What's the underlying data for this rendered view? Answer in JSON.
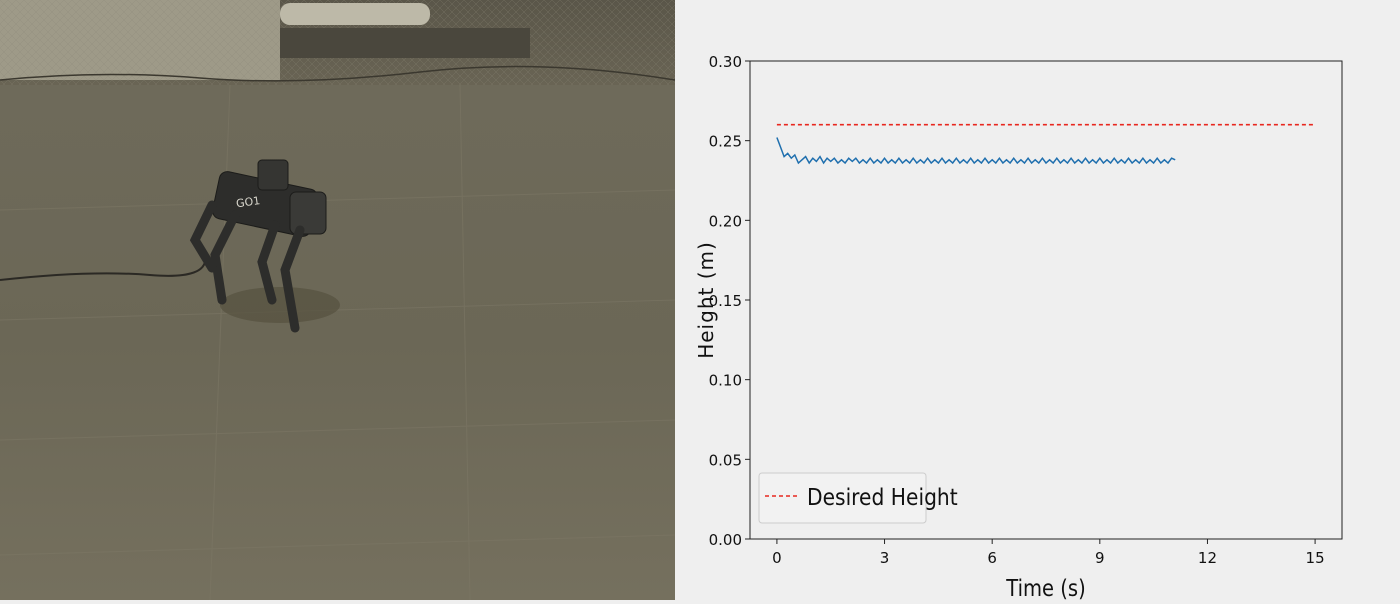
{
  "chart_data": {
    "type": "line",
    "xlabel": "Time (s)",
    "ylabel": "Height (m)",
    "xlim": [
      -0.75,
      15.75
    ],
    "ylim": [
      0.0,
      0.3
    ],
    "xticks": [
      0,
      3,
      6,
      9,
      12,
      15
    ],
    "yticks": [
      0.0,
      0.05,
      0.1,
      0.15,
      0.2,
      0.25,
      0.3
    ],
    "xtick_labels": [
      "0",
      "3",
      "6",
      "9",
      "12",
      "15"
    ],
    "ytick_labels": [
      "0.00",
      "0.05",
      "0.10",
      "0.15",
      "0.20",
      "0.25",
      "0.30"
    ],
    "grid": false,
    "legend_position": "lower-left",
    "legend": [
      "Desired Height"
    ],
    "series": [
      {
        "name": "Desired Height",
        "style": "dashed",
        "color": "#e8271f",
        "x": [
          0,
          15
        ],
        "y": [
          0.26,
          0.26
        ]
      },
      {
        "style": "solid",
        "color": "#1f6fae",
        "x": [
          0.0,
          0.1,
          0.2,
          0.3,
          0.4,
          0.5,
          0.6,
          0.7,
          0.8,
          0.9,
          1.0,
          1.1,
          1.2,
          1.3,
          1.4,
          1.5,
          1.6,
          1.7,
          1.8,
          1.9,
          2.0,
          2.1,
          2.2,
          2.3,
          2.4,
          2.5,
          2.6,
          2.7,
          2.8,
          2.9,
          3.0,
          3.1,
          3.2,
          3.3,
          3.4,
          3.5,
          3.6,
          3.7,
          3.8,
          3.9,
          4.0,
          4.1,
          4.2,
          4.3,
          4.4,
          4.5,
          4.6,
          4.7,
          4.8,
          4.9,
          5.0,
          5.1,
          5.2,
          5.3,
          5.4,
          5.5,
          5.6,
          5.7,
          5.8,
          5.9,
          6.0,
          6.1,
          6.2,
          6.3,
          6.4,
          6.5,
          6.6,
          6.7,
          6.8,
          6.9,
          7.0,
          7.1,
          7.2,
          7.3,
          7.4,
          7.5,
          7.6,
          7.7,
          7.8,
          7.9,
          8.0,
          8.1,
          8.2,
          8.3,
          8.4,
          8.5,
          8.6,
          8.7,
          8.8,
          8.9,
          9.0,
          9.1,
          9.2,
          9.3,
          9.4,
          9.5,
          9.6,
          9.7,
          9.8,
          9.9,
          10.0,
          10.1,
          10.2,
          10.3,
          10.4,
          10.5,
          10.6,
          10.7,
          10.8,
          10.9,
          11.0,
          11.1
        ],
        "y": [
          0.252,
          0.246,
          0.24,
          0.242,
          0.239,
          0.241,
          0.236,
          0.238,
          0.24,
          0.236,
          0.239,
          0.237,
          0.24,
          0.236,
          0.239,
          0.237,
          0.239,
          0.236,
          0.238,
          0.236,
          0.239,
          0.237,
          0.239,
          0.236,
          0.238,
          0.236,
          0.239,
          0.236,
          0.238,
          0.236,
          0.239,
          0.236,
          0.238,
          0.236,
          0.239,
          0.236,
          0.238,
          0.236,
          0.239,
          0.236,
          0.238,
          0.236,
          0.239,
          0.236,
          0.238,
          0.236,
          0.239,
          0.236,
          0.238,
          0.236,
          0.239,
          0.236,
          0.238,
          0.236,
          0.239,
          0.236,
          0.238,
          0.236,
          0.239,
          0.236,
          0.238,
          0.236,
          0.239,
          0.236,
          0.238,
          0.236,
          0.239,
          0.236,
          0.238,
          0.236,
          0.239,
          0.236,
          0.238,
          0.236,
          0.239,
          0.236,
          0.238,
          0.236,
          0.239,
          0.236,
          0.238,
          0.236,
          0.239,
          0.236,
          0.238,
          0.236,
          0.239,
          0.236,
          0.238,
          0.236,
          0.239,
          0.236,
          0.238,
          0.236,
          0.239,
          0.236,
          0.238,
          0.236,
          0.239,
          0.236,
          0.238,
          0.236,
          0.239,
          0.236,
          0.238,
          0.236,
          0.239,
          0.236,
          0.238,
          0.236,
          0.239,
          0.238
        ]
      }
    ]
  },
  "photo": {
    "robot_label": "GO1"
  }
}
